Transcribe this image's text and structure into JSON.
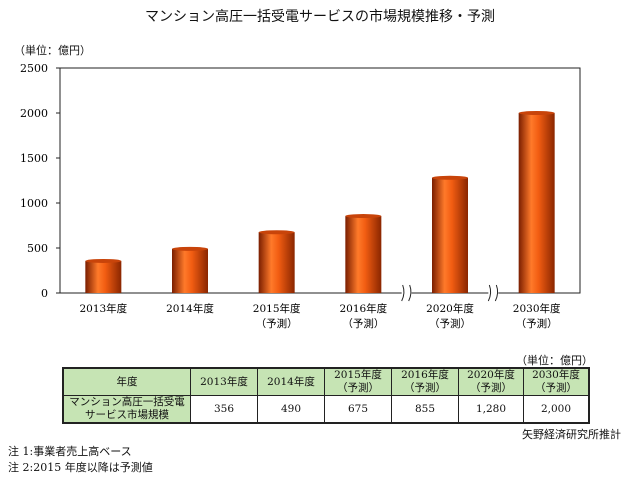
{
  "title": "マンション高圧一括受電サービスの市場規模推移・予測",
  "unit_label": "（単位：億円）",
  "chart_data": {
    "type": "bar",
    "title": "マンション高圧一括受電サービスの市場規模推移・予測",
    "ylabel": "（単位：億円）",
    "categories": [
      "2013年度",
      "2014年度",
      "2015年度",
      "2016年度",
      "2020年度",
      "2030年度"
    ],
    "category_sublabels": [
      "",
      "",
      "（予測）",
      "（予測）",
      "（予測）",
      "（予測）"
    ],
    "values": [
      356,
      490,
      675,
      855,
      1280,
      2000
    ],
    "ylim": [
      0,
      2500
    ],
    "yticks": [
      0,
      500,
      1000,
      1500,
      2000,
      2500
    ],
    "axis_breaks_after": [
      "2016年度",
      "2020年度"
    ],
    "bar_color": "#e8540e"
  },
  "table": {
    "unit": "（単位：億円）",
    "header_label": "年度",
    "columns": [
      [
        "2013年度",
        ""
      ],
      [
        "2014年度",
        ""
      ],
      [
        "2015年度",
        "（予測）"
      ],
      [
        "2016年度",
        "（予測）"
      ],
      [
        "2020年度",
        "（予測）"
      ],
      [
        "2030年度",
        "（予測）"
      ]
    ],
    "row_label": [
      "マンション高圧一括受電",
      "サービス市場規模"
    ],
    "row_values": [
      "356",
      "490",
      "675",
      "855",
      "1,280",
      "2,000"
    ]
  },
  "source": "矢野経済研究所推計",
  "notes": [
    "注 1:事業者売上高ベース",
    "注 2:2015 年度以降は予測値"
  ]
}
